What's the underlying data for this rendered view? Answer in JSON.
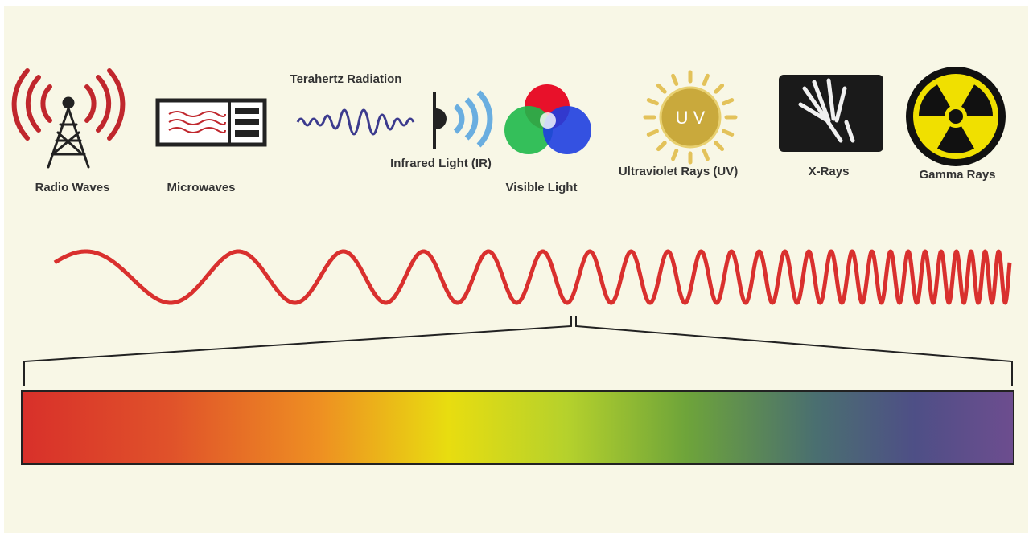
{
  "spectrum": {
    "bands": [
      {
        "label": "Radio Waves"
      },
      {
        "label": "Microwaves"
      },
      {
        "label": "Terahertz Radiation"
      },
      {
        "label": "Infrared Light (IR)"
      },
      {
        "label": "Visible Light"
      },
      {
        "label": "Ultraviolet Rays (UV)"
      },
      {
        "label": "X-Rays"
      },
      {
        "label": "Gamma Rays"
      }
    ],
    "uv_badge": "U V"
  }
}
